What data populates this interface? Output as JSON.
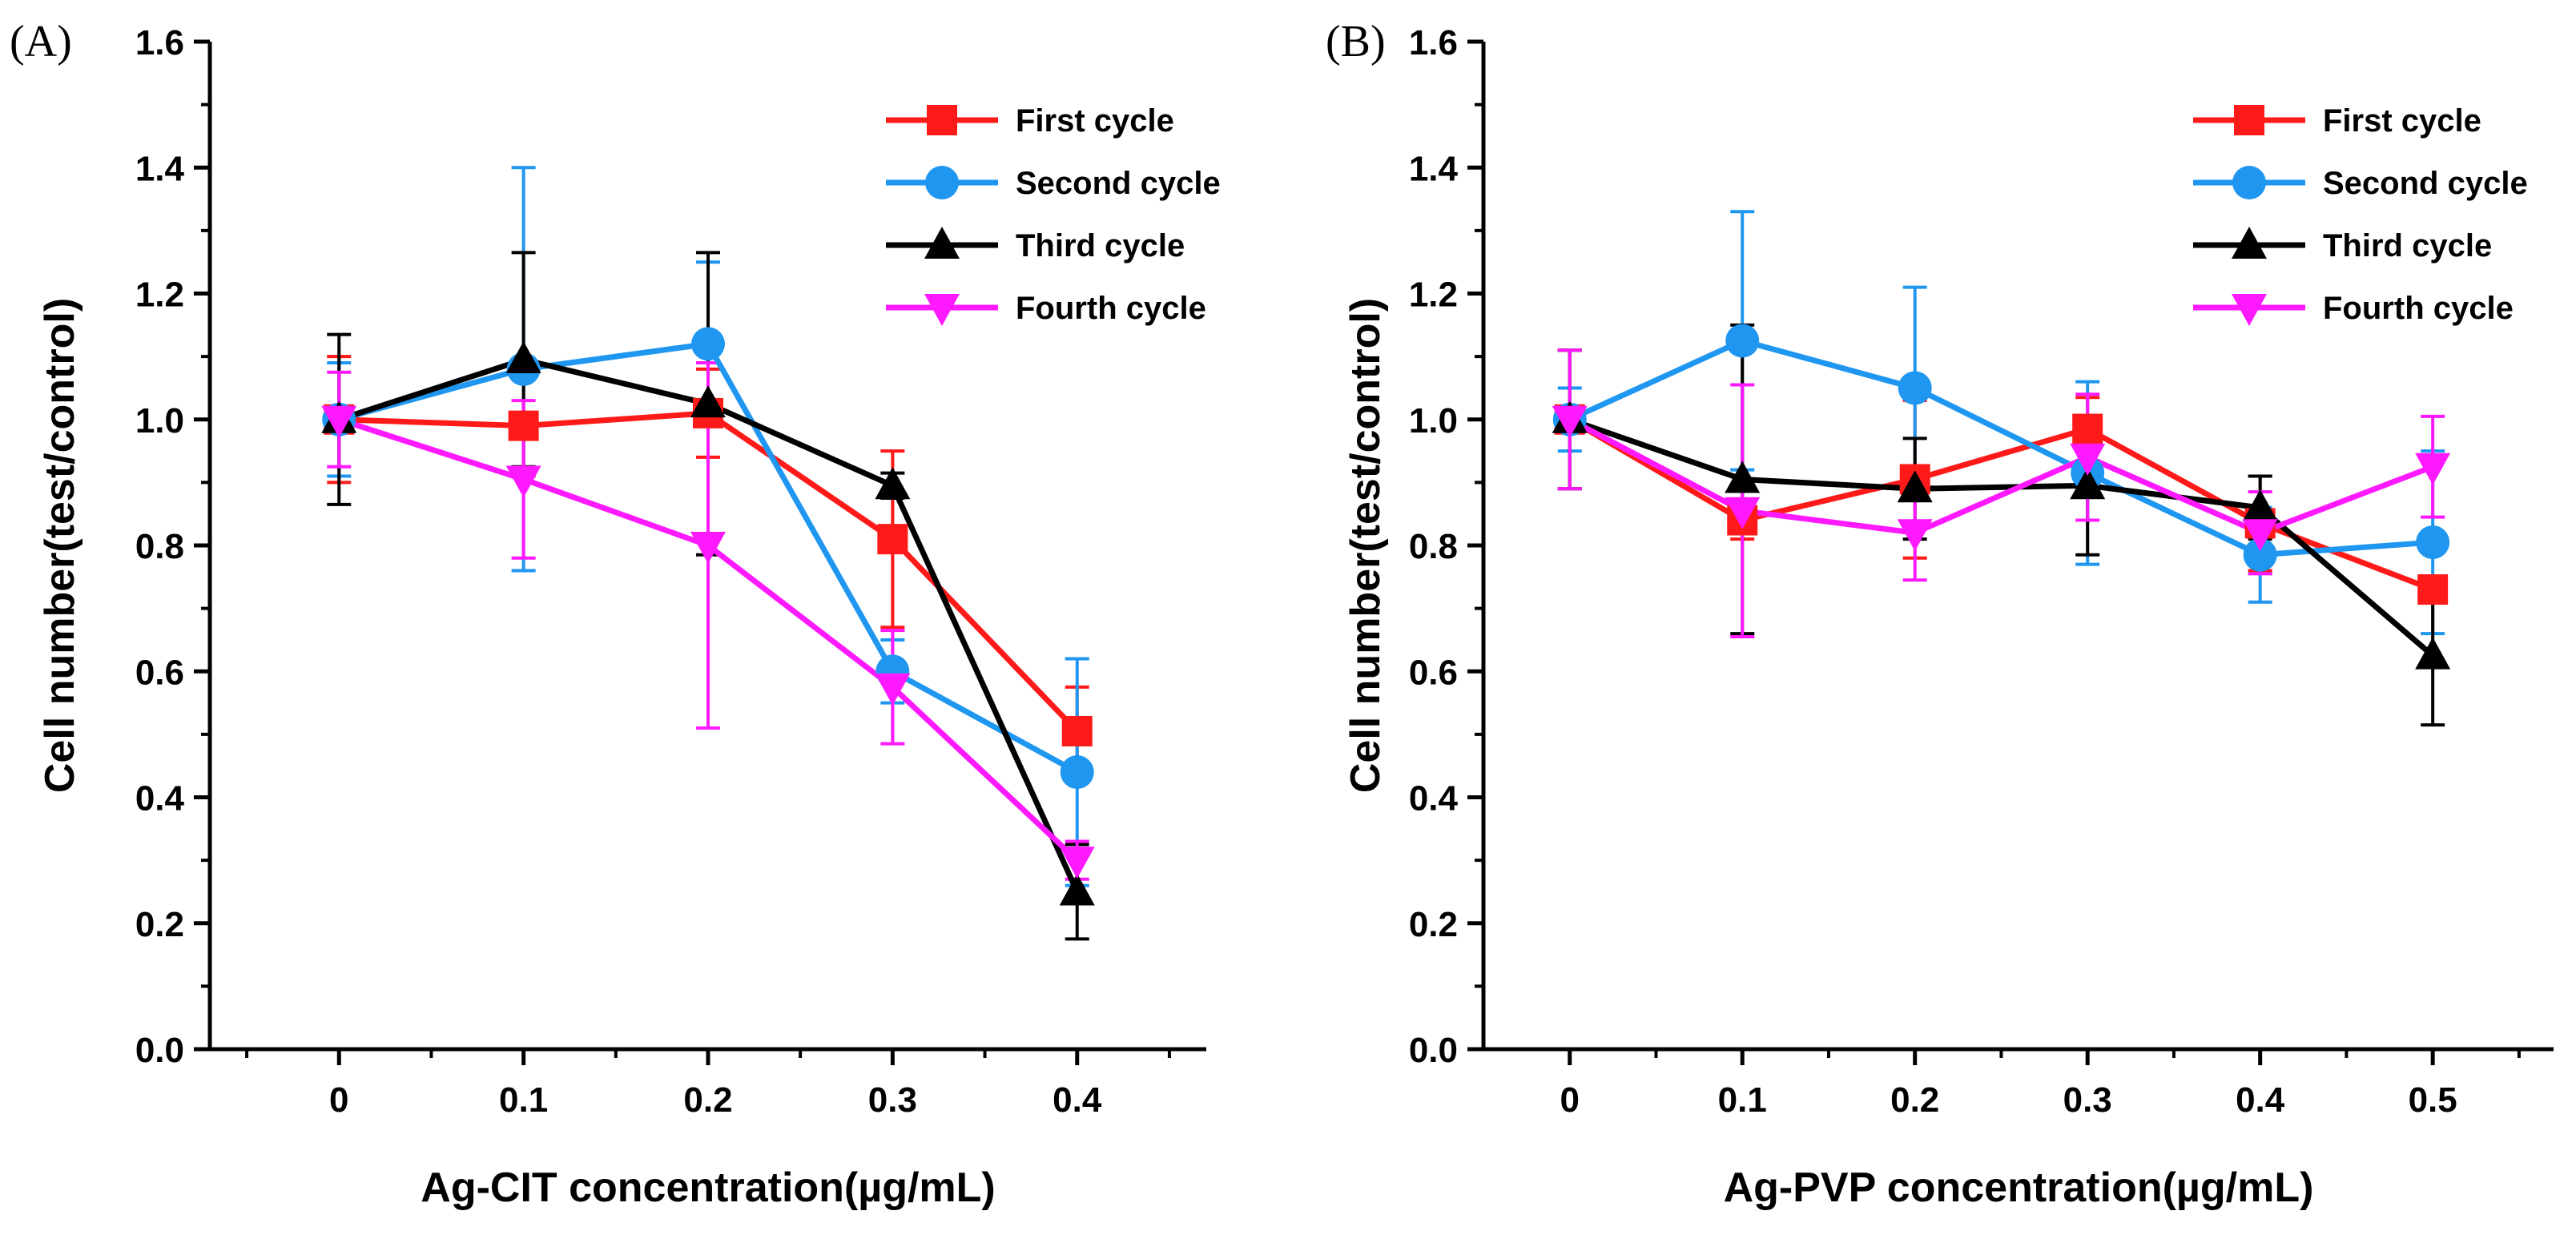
{
  "chart_data": [
    {
      "type": "line",
      "panel_label": "(A)",
      "xlabel": "Ag-CIT concentration(µg/mL)",
      "ylabel": "Cell number(test/control)",
      "x": [
        0,
        0.1,
        0.2,
        0.3,
        0.4
      ],
      "xticks": [
        "0",
        "0.1",
        "0.2",
        "0.3",
        "0.4"
      ],
      "xlim": [
        -0.07,
        0.47
      ],
      "ylim": [
        0,
        1.6
      ],
      "yticks": [
        "0.0",
        "0.2",
        "0.4",
        "0.6",
        "0.8",
        "1.0",
        "1.2",
        "1.4",
        "1.6"
      ],
      "legend_position": "top-right",
      "series": [
        {
          "name": "First cycle",
          "color": "#ff1a1a",
          "marker": "square",
          "values": [
            1.0,
            0.99,
            1.01,
            0.81,
            0.505
          ],
          "errors": [
            0.1,
            0.08,
            0.07,
            0.14,
            0.07
          ]
        },
        {
          "name": "Second cycle",
          "color": "#1f96f0",
          "marker": "circle",
          "values": [
            1.0,
            1.08,
            1.12,
            0.6,
            0.44
          ],
          "errors": [
            0.09,
            0.32,
            0.13,
            0.05,
            0.18
          ]
        },
        {
          "name": "Third cycle",
          "color": "#000000",
          "marker": "triangle-up",
          "values": [
            1.0,
            1.095,
            1.025,
            0.895,
            0.25
          ],
          "errors": [
            0.135,
            0.17,
            0.24,
            0.02,
            0.075
          ]
        },
        {
          "name": "Fourth cycle",
          "color": "#ff19ff",
          "marker": "triangle-down",
          "values": [
            1.0,
            0.905,
            0.8,
            0.575,
            0.3
          ],
          "errors": [
            0.075,
            0.125,
            0.29,
            0.09,
            0.03
          ]
        }
      ]
    },
    {
      "type": "line",
      "panel_label": "(B)",
      "xlabel": "Ag-PVP concentration(µg/mL)",
      "ylabel": "Cell number(test/control)",
      "x": [
        0,
        0.1,
        0.2,
        0.3,
        0.4,
        0.5
      ],
      "xticks": [
        "0",
        "0.1",
        "0.2",
        "0.3",
        "0.4",
        "0.5"
      ],
      "xlim": [
        -0.05,
        0.57
      ],
      "ylim": [
        0,
        1.6
      ],
      "yticks": [
        "0.0",
        "0.2",
        "0.4",
        "0.6",
        "0.8",
        "1.0",
        "1.2",
        "1.4",
        "1.6"
      ],
      "legend_position": "top-right",
      "series": [
        {
          "name": "First cycle",
          "color": "#ff1a1a",
          "marker": "square",
          "values": [
            1.0,
            0.84,
            0.905,
            0.985,
            0.835,
            0.73
          ],
          "errors": [
            0.11,
            0.03,
            0.125,
            0.05,
            0.075,
            0.015
          ]
        },
        {
          "name": "Second cycle",
          "color": "#1f96f0",
          "marker": "circle",
          "values": [
            1.0,
            1.125,
            1.05,
            0.915,
            0.785,
            0.805
          ],
          "errors": [
            0.05,
            0.205,
            0.16,
            0.145,
            0.075,
            0.145
          ]
        },
        {
          "name": "Third cycle",
          "color": "#000000",
          "marker": "triangle-up",
          "values": [
            1.0,
            0.905,
            0.89,
            0.895,
            0.86,
            0.625
          ],
          "errors": [
            0.11,
            0.245,
            0.08,
            0.11,
            0.05,
            0.11
          ]
        },
        {
          "name": "Fourth cycle",
          "color": "#ff19ff",
          "marker": "triangle-down",
          "values": [
            1.0,
            0.855,
            0.82,
            0.94,
            0.82,
            0.925
          ],
          "errors": [
            0.11,
            0.2,
            0.075,
            0.1,
            0.065,
            0.08
          ]
        }
      ]
    }
  ]
}
